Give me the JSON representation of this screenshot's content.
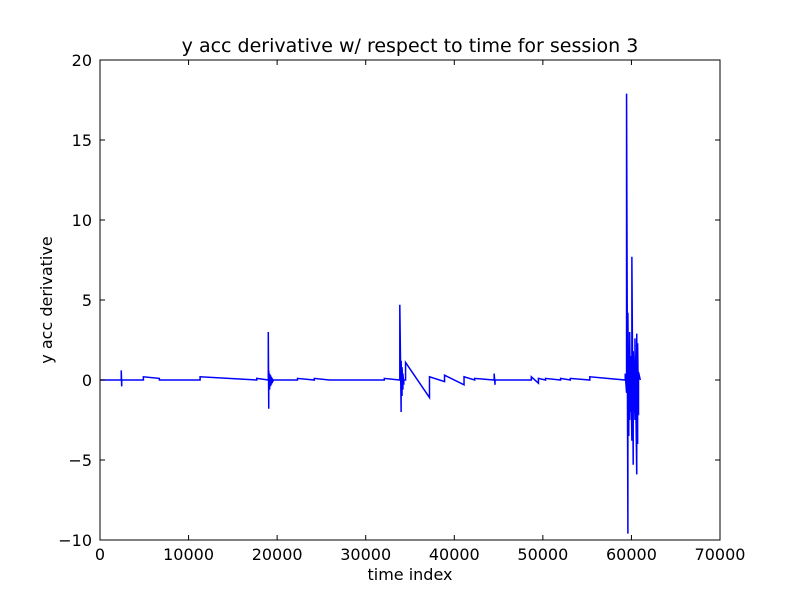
{
  "chart_data": {
    "type": "line",
    "title": "y acc derivative w/ respect to time for session 3",
    "xlabel": "time index",
    "ylabel": "y acc derivative",
    "xlim": [
      0,
      70000
    ],
    "ylim": [
      -10,
      20
    ],
    "x_ticks": [
      0,
      10000,
      20000,
      30000,
      40000,
      50000,
      60000,
      70000
    ],
    "x_tick_labels": [
      "0",
      "10000",
      "20000",
      "30000",
      "40000",
      "50000",
      "60000",
      "70000"
    ],
    "y_ticks": [
      -10,
      -5,
      0,
      5,
      10,
      15,
      20
    ],
    "y_tick_labels": [
      "−10",
      "−5",
      "0",
      "5",
      "10",
      "15",
      "20"
    ],
    "grid": false,
    "legend": "none",
    "series": [
      {
        "color": "#0000ff",
        "x": [
          0,
          2400,
          2400,
          2450,
          2450,
          4900,
          4900,
          6700,
          6700,
          11300,
          11300,
          17700,
          17700,
          19000,
          19000,
          19050,
          19050,
          19150,
          19150,
          19250,
          19250,
          19350,
          19350,
          19450,
          19450,
          19550,
          19550,
          19700,
          19700,
          22300,
          22300,
          24200,
          24200,
          25900,
          25900,
          32100,
          32100,
          33850,
          33850,
          34000,
          34000,
          34100,
          34100,
          34200,
          34200,
          34300,
          34300,
          34500,
          34500,
          37200,
          37200,
          38900,
          38900,
          41100,
          41100,
          42300,
          42300,
          44500,
          44500,
          44600,
          44600,
          48700,
          48700,
          49500,
          49500,
          50300,
          50300,
          52000,
          52000,
          53100,
          53100,
          55300,
          55300,
          59300,
          59300,
          59450,
          59450,
          59600,
          59600,
          59700,
          59700,
          59800,
          59800,
          59900,
          59900,
          60050,
          60050,
          60200,
          60200,
          60400,
          60400,
          60600,
          60600,
          60700,
          60700,
          60800,
          60800,
          61000
        ],
        "y": [
          0,
          0,
          0.6,
          -0.4,
          0,
          0,
          0.2,
          0.1,
          0,
          0,
          0.2,
          0,
          0.1,
          0,
          3.0,
          -1.8,
          0.6,
          -0.6,
          0.4,
          -0.4,
          0.3,
          -0.3,
          0.2,
          -0.2,
          0.1,
          -0.1,
          0,
          0,
          0,
          0,
          0.1,
          0,
          0.1,
          0,
          0,
          0,
          0.1,
          0,
          4.7,
          -2.0,
          1.2,
          -1.0,
          0.8,
          -0.6,
          0.4,
          -0.3,
          0,
          0,
          1.1,
          -1.1,
          0.2,
          -0.1,
          0.3,
          -0.3,
          0.2,
          0,
          0.1,
          0,
          0.4,
          -0.3,
          0,
          0,
          0.2,
          -0.2,
          0.1,
          0,
          0.1,
          0,
          0.1,
          0,
          0.1,
          0,
          0.2,
          0,
          0.4,
          -0.8,
          17.9,
          -9.6,
          4.2,
          -3.5,
          2.0,
          -2.5,
          3.0,
          -2.0,
          1.5,
          -3.8,
          7.7,
          -5.3,
          1.8,
          -2.5,
          2.6,
          -5.9,
          2.9,
          -4.0,
          2.3,
          -2.2,
          0.5,
          0
        ]
      }
    ]
  }
}
